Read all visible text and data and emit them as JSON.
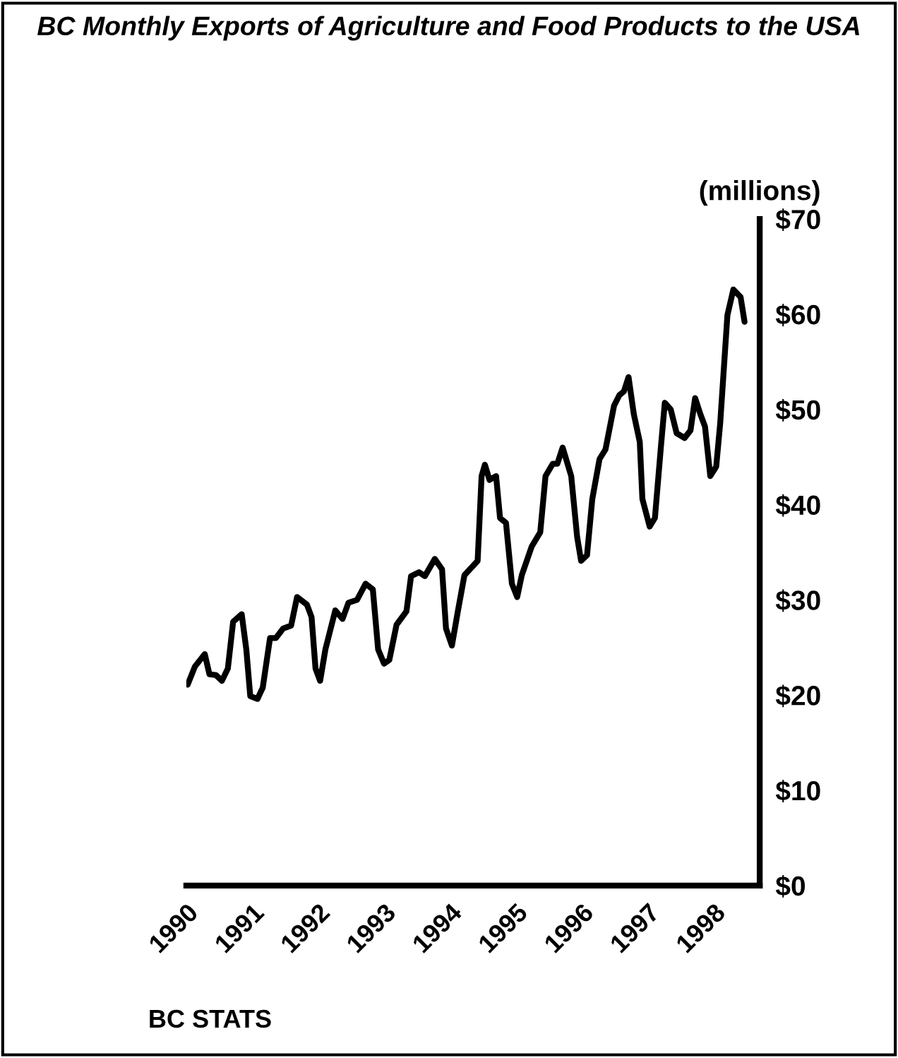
{
  "chart_data": {
    "type": "line",
    "title": "BC Monthly Exports of Agriculture and Food Products to the USA",
    "ylabel": "(millions)",
    "annotations": [
      "BC STATS"
    ],
    "x": [
      1990.02,
      1990.13,
      1990.28,
      1990.35,
      1990.45,
      1990.54,
      1990.63,
      1990.71,
      1990.84,
      1990.91,
      1990.97,
      1991.08,
      1991.16,
      1991.27,
      1991.36,
      1991.47,
      1991.59,
      1991.68,
      1991.83,
      1991.9,
      1991.96,
      1992.03,
      1992.11,
      1992.26,
      1992.37,
      1992.46,
      1992.59,
      1992.72,
      1992.83,
      1992.91,
      1993.0,
      1993.08,
      1993.19,
      1993.34,
      1993.41,
      1993.53,
      1993.62,
      1993.77,
      1993.88,
      1993.94,
      1994.03,
      1994.12,
      1994.22,
      1994.42,
      1994.48,
      1994.53,
      1994.6,
      1994.7,
      1994.76,
      1994.85,
      1994.94,
      1995.02,
      1995.09,
      1995.24,
      1995.37,
      1995.45,
      1995.56,
      1995.63,
      1995.71,
      1995.84,
      1995.93,
      1995.99,
      1996.08,
      1996.16,
      1996.27,
      1996.36,
      1996.49,
      1996.57,
      1996.64,
      1996.71,
      1996.79,
      1996.88,
      1996.92,
      1997.03,
      1997.11,
      1997.2,
      1997.26,
      1997.35,
      1997.44,
      1997.56,
      1997.65,
      1997.72,
      1997.8,
      1997.87,
      1997.95,
      1998.04,
      1998.1,
      1998.21,
      1998.3,
      1998.41,
      1998.47
    ],
    "series": [
      {
        "color": "#000000",
        "values": [
          21.1,
          23.0,
          24.3,
          22.2,
          22.1,
          21.5,
          22.8,
          27.7,
          28.5,
          24.8,
          19.9,
          19.6,
          20.8,
          26.0,
          26.0,
          27.0,
          27.3,
          30.3,
          29.5,
          28.2,
          22.8,
          21.5,
          24.8,
          28.9,
          28.0,
          29.7,
          30.0,
          31.7,
          31.1,
          24.8,
          23.3,
          23.7,
          27.4,
          28.8,
          32.5,
          32.9,
          32.5,
          34.3,
          33.2,
          27.0,
          25.2,
          28.8,
          32.6,
          34.1,
          43.0,
          44.2,
          42.6,
          43.0,
          38.6,
          38.1,
          31.7,
          30.3,
          32.6,
          35.6,
          37.1,
          43.0,
          44.3,
          44.3,
          46.0,
          43.0,
          36.6,
          34.1,
          34.7,
          40.6,
          44.8,
          45.8,
          50.4,
          51.5,
          51.9,
          53.4,
          49.5,
          46.6,
          40.6,
          37.7,
          38.6,
          46.0,
          50.7,
          50.0,
          47.5,
          47.0,
          47.8,
          51.2,
          49.5,
          48.2,
          43.0,
          44.0,
          48.5,
          59.9,
          62.6,
          61.8,
          59.2
        ]
      }
    ],
    "xlim": [
      1990,
      1998.7
    ],
    "xticks": [
      1990,
      1991,
      1992,
      1993,
      1994,
      1995,
      1996,
      1997,
      1998
    ],
    "ylim": [
      0,
      70
    ],
    "yticks": [
      {
        "value": 0,
        "label": "$0"
      },
      {
        "value": 10,
        "label": "$10"
      },
      {
        "value": 20,
        "label": "$20"
      },
      {
        "value": 30,
        "label": "$30"
      },
      {
        "value": 40,
        "label": "$40"
      },
      {
        "value": 50,
        "label": "$50"
      },
      {
        "value": 60,
        "label": "$60"
      },
      {
        "value": 70,
        "label": "$70"
      }
    ],
    "grid": false,
    "marker": "none",
    "line_style": "solid"
  }
}
